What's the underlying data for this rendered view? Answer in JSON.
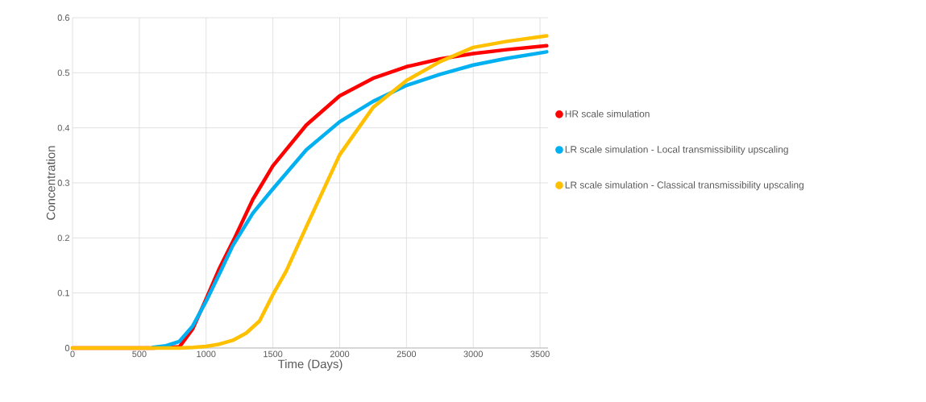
{
  "chart_data": {
    "type": "line",
    "xlabel": "Time (Days)",
    "ylabel": "Concentration",
    "xlim": [
      0,
      3560
    ],
    "xticks": [
      0,
      500,
      1000,
      1500,
      2000,
      2500,
      3000,
      3500
    ],
    "ylim": [
      0,
      0.6
    ],
    "yticks": [
      0,
      0.1,
      0.2,
      0.3,
      0.4,
      0.5,
      0.6
    ],
    "grid": true,
    "legend": "right",
    "marker": "none",
    "line_style": "solid",
    "series": [
      {
        "name": "HR scale simulation",
        "color": "#ff0000",
        "x": [
          0,
          600,
          800,
          900,
          1000,
          1100,
          1208,
          1350,
          1500,
          1750,
          2000,
          2250,
          2500,
          2750,
          3000,
          3250,
          3550
        ],
        "values": [
          0,
          0,
          0.002,
          0.035,
          0.089,
          0.145,
          0.197,
          0.27,
          0.331,
          0.405,
          0.458,
          0.49,
          0.511,
          0.525,
          0.535,
          0.542,
          0.549
        ]
      },
      {
        "name": "LR scale simulation - Local transmissibility upscaling",
        "color": "#00b0f0",
        "x": [
          600,
          700,
          800,
          900,
          1000,
          1100,
          1200,
          1350,
          1500,
          1750,
          2000,
          2250,
          2500,
          2750,
          3000,
          3250,
          3550
        ],
        "values": [
          0.001,
          0.004,
          0.012,
          0.04,
          0.085,
          0.135,
          0.186,
          0.245,
          0.289,
          0.36,
          0.411,
          0.448,
          0.477,
          0.497,
          0.514,
          0.526,
          0.538
        ]
      },
      {
        "name": "LR scale simulation - Classical transmissibility upscaling",
        "color": "#ffc000",
        "x": [
          0,
          800,
          900,
          1000,
          1100,
          1200,
          1300,
          1400,
          1500,
          1600,
          1750,
          2000,
          2250,
          2500,
          2750,
          3000,
          3250,
          3550
        ],
        "values": [
          0,
          0,
          0.001,
          0.003,
          0.007,
          0.014,
          0.027,
          0.049,
          0.097,
          0.14,
          0.22,
          0.351,
          0.437,
          0.486,
          0.52,
          0.546,
          0.557,
          0.567
        ]
      }
    ]
  }
}
